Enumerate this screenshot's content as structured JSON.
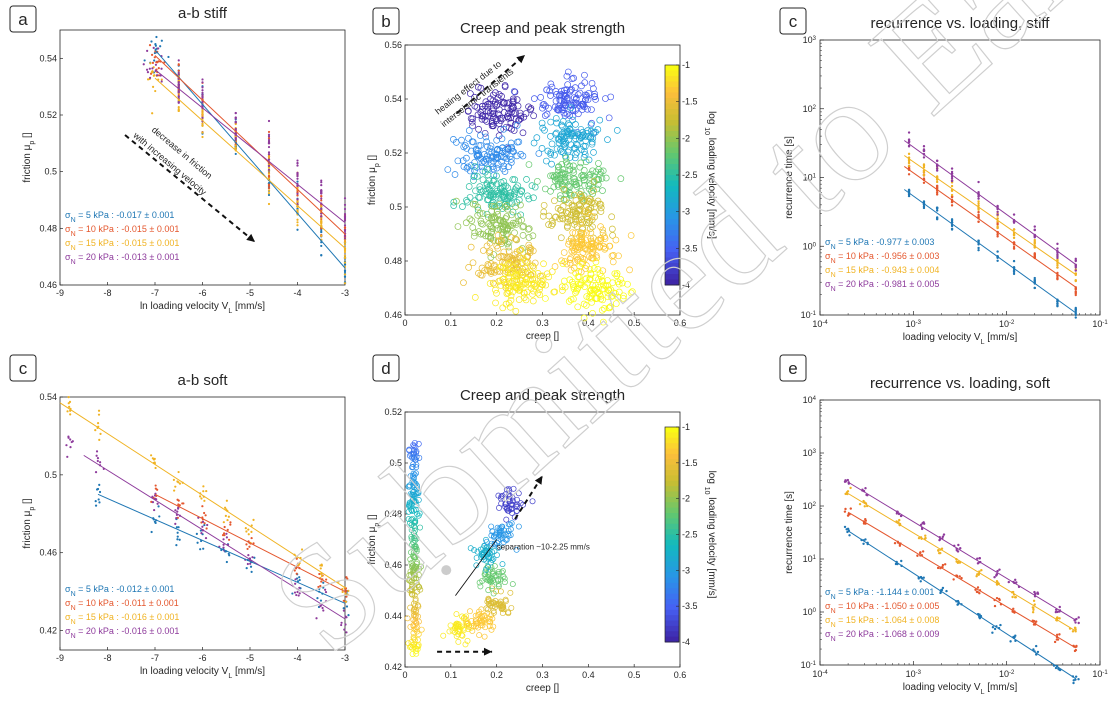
{
  "colors": {
    "s5": "#1f77b4",
    "s10": "#e4572e",
    "s15": "#f0b323",
    "s20": "#8e3b9c",
    "axis": "#262626"
  },
  "watermark": "Submitted to EarthArXiv",
  "chart_data": [
    {
      "id": "a",
      "type": "scatter",
      "panel_letter": "a",
      "title": "a-b stiff",
      "xlabel": "ln loading velocity V_L [mm/s]",
      "ylabel": "friction μ_p []",
      "xlim": [
        -9,
        -3
      ],
      "ylim": [
        0.46,
        0.55
      ],
      "xticks": [
        -9,
        -8,
        -7,
        -6,
        -5,
        -4,
        -3
      ],
      "xtick_labels": [
        "-9",
        "-8",
        "-7",
        "-6",
        "-5",
        "-4",
        "-3"
      ],
      "yticks": [
        0.46,
        0.48,
        0.5,
        0.52,
        0.54
      ],
      "ytick_labels": [
        "0.46",
        "0.48",
        "0.5",
        "0.52",
        "0.54"
      ],
      "x_positions": [
        -7,
        -6.5,
        -6,
        -5.3,
        -4.6,
        -4,
        -3.5,
        -3
      ],
      "series": [
        {
          "name": "σ_N = 5 kPa : -0.017 ± 0.001",
          "color": "#1f77b4",
          "y": [
            0.543,
            0.532,
            0.524,
            0.51,
            0.497,
            0.487,
            0.477,
            0.466
          ]
        },
        {
          "name": "σ_N = 10 kPa : -0.015 ± 0.001",
          "color": "#e4572e",
          "y": [
            0.541,
            0.533,
            0.525,
            0.513,
            0.503,
            0.493,
            0.486,
            0.478
          ]
        },
        {
          "name": "σ_N = 15 kPa : -0.015 ± 0.001",
          "color": "#f0b323",
          "y": [
            0.533,
            0.527,
            0.52,
            0.51,
            0.5,
            0.489,
            0.482,
            0.473
          ]
        },
        {
          "name": "σ_N = 20 kPa : -0.013 ± 0.001",
          "color": "#8e3b9c",
          "y": [
            0.536,
            0.531,
            0.525,
            0.516,
            0.507,
            0.497,
            0.49,
            0.482
          ]
        }
      ],
      "annotations": [
        "decrease in friction",
        "with increasing velocity"
      ]
    },
    {
      "id": "b",
      "type": "scatter",
      "panel_letter": "b",
      "title": "Creep and peak strength",
      "xlabel": "creep []",
      "ylabel": "friction μ_p []",
      "xlim": [
        0,
        0.6
      ],
      "ylim": [
        0.46,
        0.56
      ],
      "xticks": [
        0,
        0.1,
        0.2,
        0.3,
        0.4,
        0.5,
        0.6
      ],
      "xtick_labels": [
        "0",
        "0.1",
        "0.2",
        "0.3",
        "0.4",
        "0.5",
        "0.6"
      ],
      "yticks": [
        0.46,
        0.48,
        0.5,
        0.52,
        0.54,
        0.56
      ],
      "ytick_labels": [
        "0.46",
        "0.48",
        "0.5",
        "0.52",
        "0.54",
        "0.56"
      ],
      "clusters": [
        {
          "cx": 0.2,
          "cy": 0.535,
          "v": -4
        },
        {
          "cx": 0.36,
          "cy": 0.54,
          "v": -3.6
        },
        {
          "cx": 0.18,
          "cy": 0.52,
          "v": -3.2
        },
        {
          "cx": 0.36,
          "cy": 0.525,
          "v": -2.9
        },
        {
          "cx": 0.2,
          "cy": 0.505,
          "v": -2.5
        },
        {
          "cx": 0.37,
          "cy": 0.51,
          "v": -2.2
        },
        {
          "cx": 0.21,
          "cy": 0.493,
          "v": -2
        },
        {
          "cx": 0.38,
          "cy": 0.497,
          "v": -1.7
        },
        {
          "cx": 0.22,
          "cy": 0.48,
          "v": -1.5
        },
        {
          "cx": 0.4,
          "cy": 0.485,
          "v": -1.3
        },
        {
          "cx": 0.25,
          "cy": 0.472,
          "v": -1.1
        },
        {
          "cx": 0.41,
          "cy": 0.47,
          "v": -1
        }
      ],
      "colorbar": {
        "label": "log 10 loading velocity [mm/s]",
        "range": [
          -4,
          -1
        ],
        "ticks": [
          "-1",
          "-1.5",
          "-2",
          "-2.5",
          "-3",
          "-3.5",
          "-4"
        ]
      },
      "annotations": [
        "healing effect due to",
        "interseismic transients"
      ]
    },
    {
      "id": "c1",
      "type": "scatter",
      "panel_letter": "c",
      "title": "recurrence vs. loading, stiff",
      "xlabel": "loading velocity V_L [mm/s]",
      "ylabel": "recurrence time [s]",
      "xscale": "log",
      "yscale": "log",
      "xlim": [
        0.0001,
        0.1
      ],
      "ylim": [
        0.1,
        1000
      ],
      "xtick_labels": [
        "10-4",
        "10-3",
        "10-2",
        "10-1"
      ],
      "ytick_labels": [
        "10-1",
        "100",
        "101",
        "102",
        "103"
      ],
      "x": [
        0.0009,
        0.0013,
        0.0018,
        0.0026,
        0.005,
        0.008,
        0.012,
        0.02,
        0.035,
        0.055
      ],
      "series": [
        {
          "name": "σ_N = 5 kPa : -0.977 ± 0.003",
          "color": "#1f77b4",
          "intercept_log": -2.2,
          "slope": -0.977
        },
        {
          "name": "σ_N = 10 kPa : -0.956 ± 0.003",
          "color": "#e4572e",
          "intercept_log": -1.8,
          "slope": -0.956
        },
        {
          "name": "σ_N = 15 kPa : -0.943 ± 0.004",
          "color": "#f0b323",
          "intercept_log": -1.6,
          "slope": -0.943
        },
        {
          "name": "σ_N = 20 kPa : -0.981 ± 0.005",
          "color": "#8e3b9c",
          "intercept_log": -1.5,
          "slope": -0.981
        }
      ]
    },
    {
      "id": "c2",
      "type": "scatter",
      "panel_letter": "c",
      "title": "a-b soft",
      "xlabel": "ln loading velocity V_L [mm/s]",
      "ylabel": "friction μ_p []",
      "xlim": [
        -9,
        -3
      ],
      "ylim": [
        0.41,
        0.54
      ],
      "xticks": [
        -9,
        -8,
        -7,
        -6,
        -5,
        -4,
        -3
      ],
      "xtick_labels": [
        "-9",
        "-8",
        "-7",
        "-6",
        "-5",
        "-4",
        "-3"
      ],
      "yticks": [
        0.42,
        0.46,
        0.5,
        0.54
      ],
      "ytick_labels": [
        "0.42",
        "0.46",
        "0.5",
        "0.54"
      ],
      "lines": [
        {
          "color": "#1f77b4",
          "x": [
            -8.2,
            -3
          ],
          "y": [
            0.49,
            0.434
          ]
        },
        {
          "color": "#e4572e",
          "x": [
            -7,
            -3
          ],
          "y": [
            0.49,
            0.44
          ]
        },
        {
          "color": "#f0b323",
          "x": [
            -9,
            -3
          ],
          "y": [
            0.537,
            0.442
          ]
        },
        {
          "color": "#8e3b9c",
          "x": [
            -8.5,
            -3
          ],
          "y": [
            0.51,
            0.426
          ]
        }
      ],
      "legend": [
        {
          "name": "σ_N = 5 kPa : -0.012 ± 0.001",
          "color": "#1f77b4"
        },
        {
          "name": "σ_N = 10 kPa : -0.011 ± 0.001",
          "color": "#e4572e"
        },
        {
          "name": "σ_N = 15 kPa : -0.016 ± 0.001",
          "color": "#f0b323"
        },
        {
          "name": "σ_N = 20 kPa : -0.016 ± 0.001",
          "color": "#8e3b9c"
        }
      ]
    },
    {
      "id": "d",
      "type": "scatter",
      "panel_letter": "d",
      "title": "Creep and peak strength",
      "xlabel": "creep []",
      "ylabel": "friction μ_p []",
      "xlim": [
        0,
        0.6
      ],
      "ylim": [
        0.42,
        0.52
      ],
      "xticks": [
        0,
        0.1,
        0.2,
        0.3,
        0.4,
        0.5,
        0.6
      ],
      "xtick_labels": [
        "0",
        "0.1",
        "0.2",
        "0.3",
        "0.4",
        "0.5",
        "0.6"
      ],
      "yticks": [
        0.42,
        0.44,
        0.46,
        0.48,
        0.5,
        0.52
      ],
      "ytick_labels": [
        "0.42",
        "0.44",
        "0.46",
        "0.48",
        "0.5",
        "0.52"
      ],
      "colorbar": {
        "label": "log 10 loading velocity [mm/s]",
        "range": [
          -4,
          -1
        ],
        "ticks": [
          "-1",
          "-1.5",
          "-2",
          "-2.5",
          "-3",
          "-3.5",
          "-4"
        ]
      },
      "annotations": [
        "separation ~10-2.25 mm/s"
      ]
    },
    {
      "id": "e",
      "type": "scatter",
      "panel_letter": "e",
      "title": "recurrence vs. loading, soft",
      "xlabel": "loading velocity V_L [mm/s]",
      "ylabel": "recurrence time [s]",
      "xscale": "log",
      "yscale": "log",
      "xlim": [
        0.0001,
        0.1
      ],
      "ylim": [
        0.1,
        10000
      ],
      "xtick_labels": [
        "10-4",
        "10-3",
        "10-2",
        "10-1"
      ],
      "ytick_labels": [
        "10-1",
        "100",
        "101",
        "102",
        "103",
        "104"
      ],
      "series": [
        {
          "name": "σ_N = 5 kPa : -1.144 ± 0.001",
          "color": "#1f77b4",
          "intercept_log": -2.7,
          "slope": -1.144
        },
        {
          "name": "σ_N = 10 kPa : -1.050 ± 0.005",
          "color": "#e4572e",
          "intercept_log": -2.0,
          "slope": -1.05
        },
        {
          "name": "σ_N = 15 kPa : -1.064 ± 0.008",
          "color": "#f0b323",
          "intercept_log": -1.7,
          "slope": -1.064
        },
        {
          "name": "σ_N = 20 kPa : -1.068 ± 0.009",
          "color": "#8e3b9c",
          "intercept_log": -1.5,
          "slope": -1.068
        }
      ]
    }
  ]
}
